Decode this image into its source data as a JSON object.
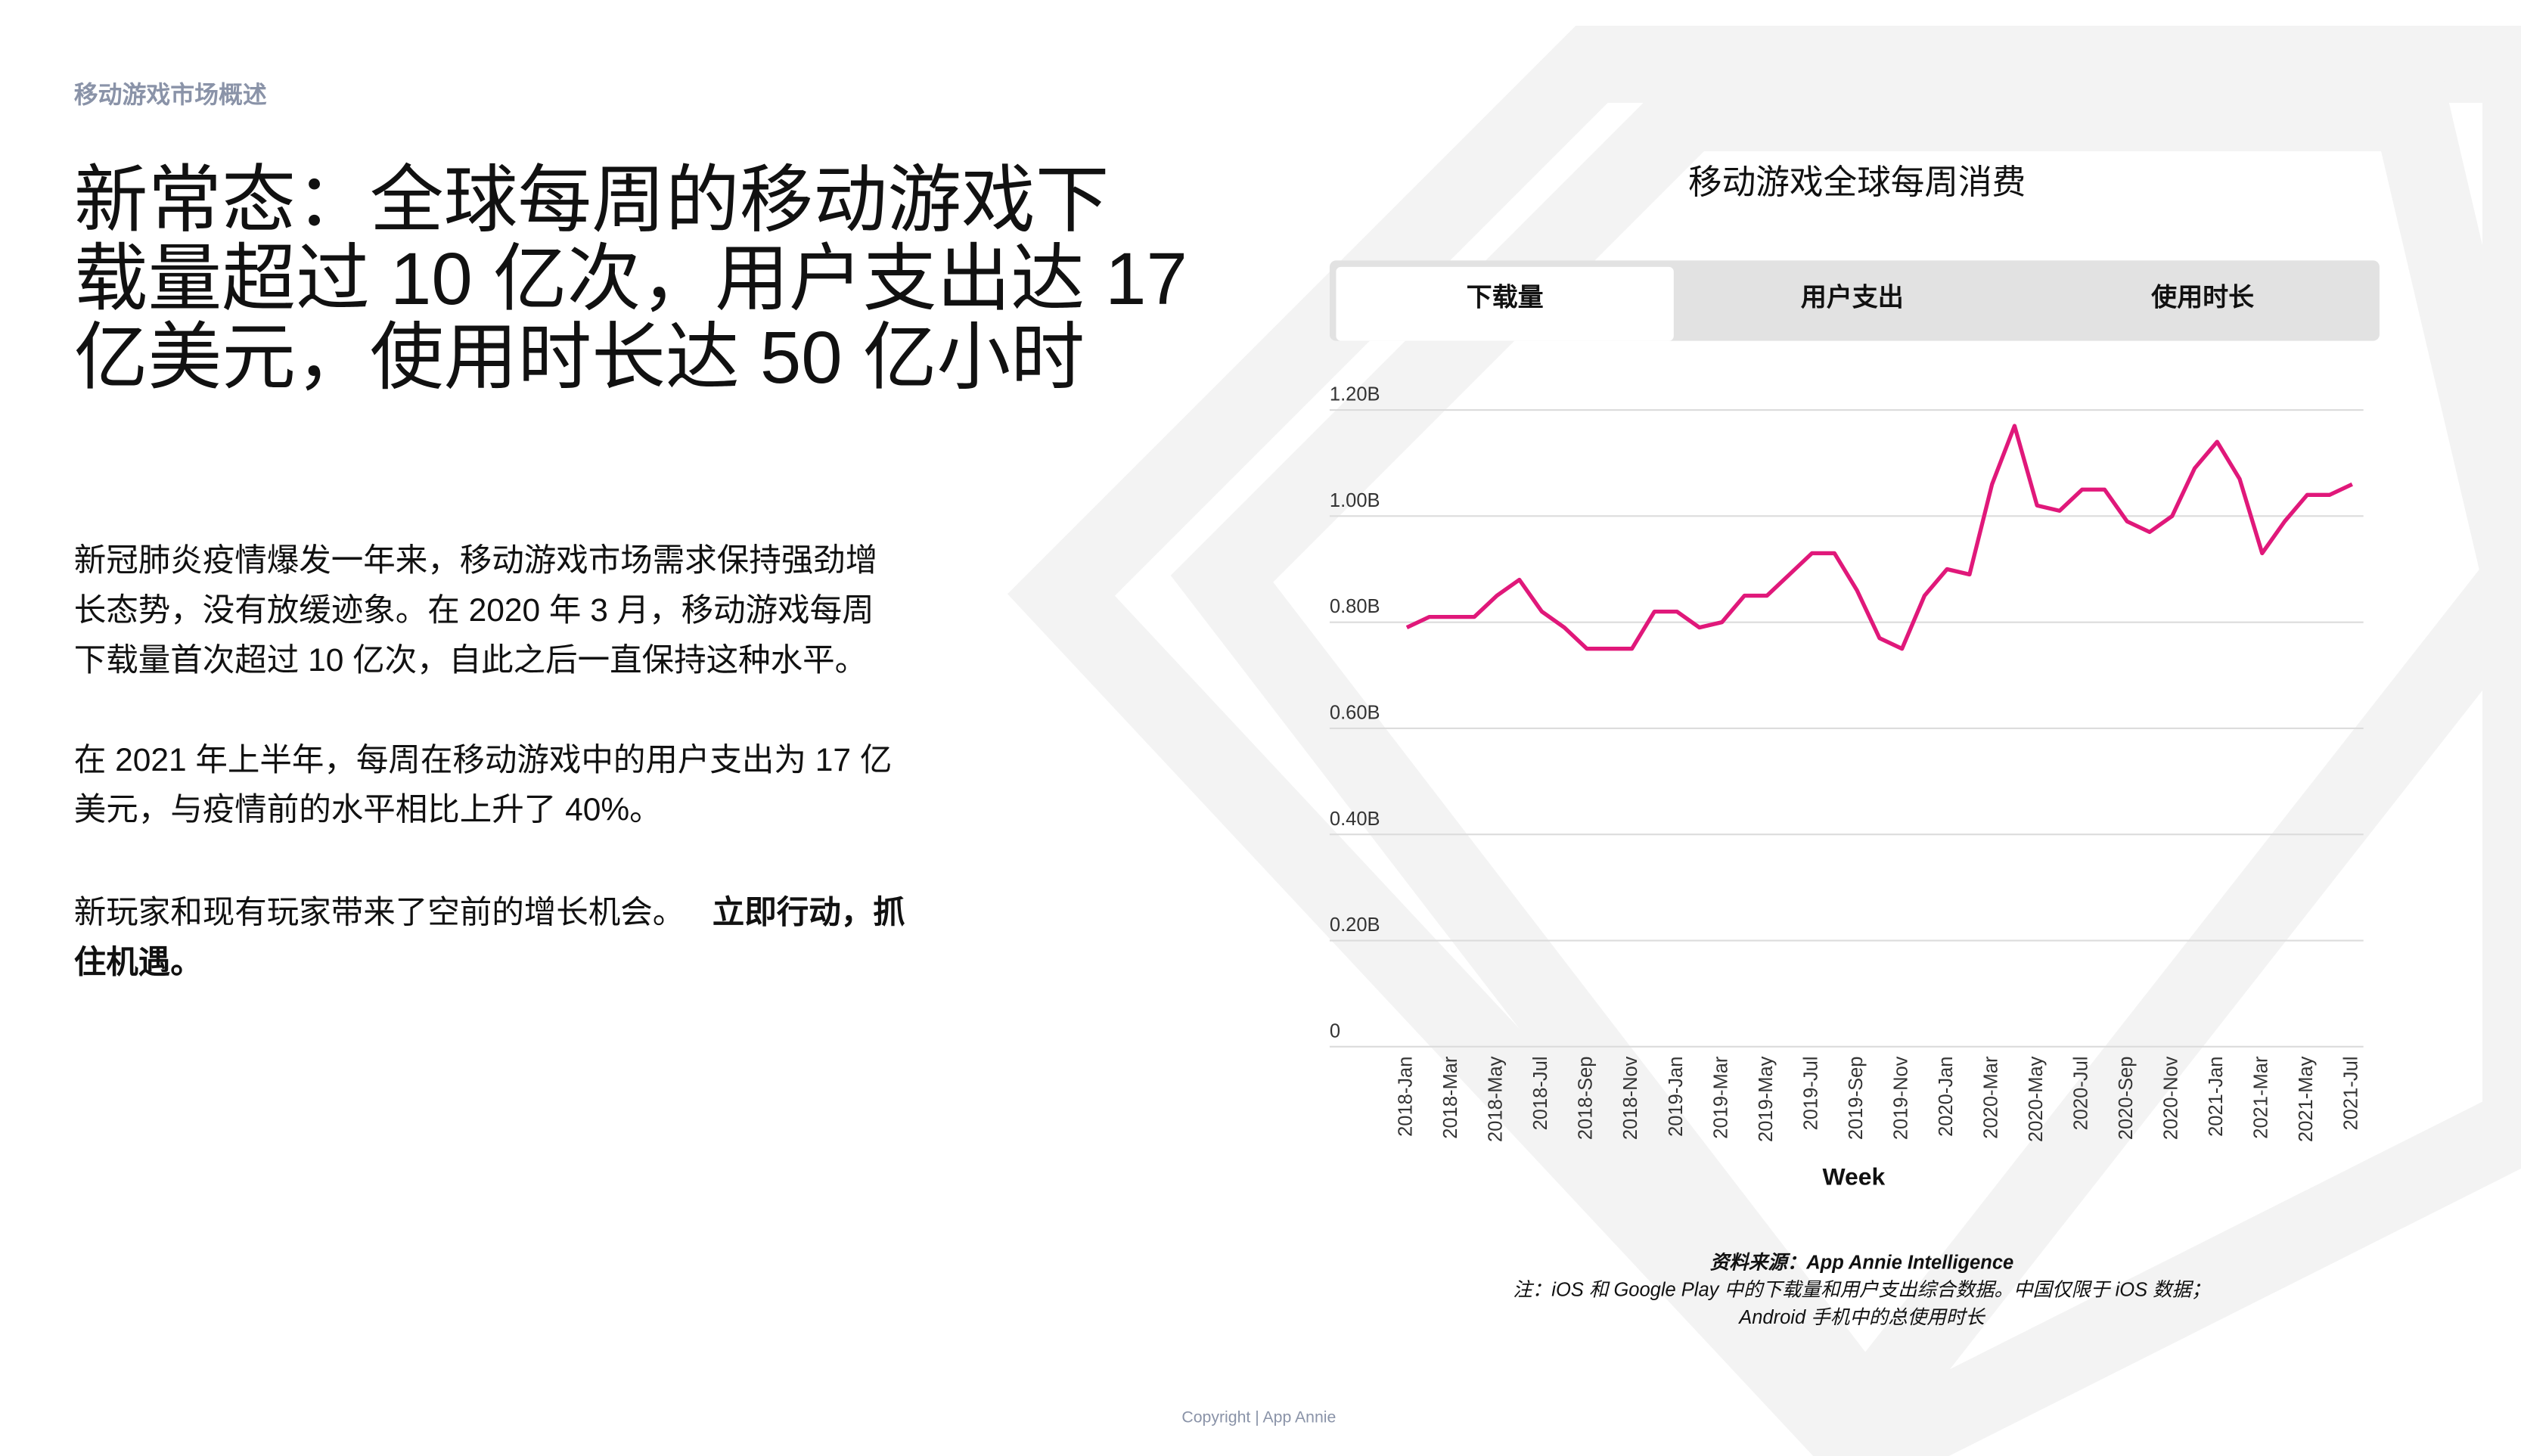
{
  "header": {
    "section": "移动游戏市场概述"
  },
  "headline": [
    "新常态：全球每周的移动游戏下",
    "载量超过 10 亿次，用户支出达 17",
    "亿美元，使用时长达 50 亿小时"
  ],
  "body": {
    "paragraphs": [
      [
        "新冠肺炎疫情爆发一年来，移动游戏市场需求保持强劲增",
        "长态势，没有放缓迹象。在 2020 年 3 月，移动游戏每周",
        "下载量首次超过 10 亿次，自此之后一直保持这种水平。"
      ],
      [
        "在 2021 年上半年，每周在移动游戏中的用户支出为 17 亿",
        "美元，与疫情前的水平相比上升了 40%。"
      ]
    ],
    "closing": {
      "plain": "新玩家和现有玩家带来了空前的增长机会。",
      "bold": [
        "立即行动，抓",
        "住机遇。"
      ]
    }
  },
  "tabs": [
    "下载量",
    "用户支出",
    "使用时长"
  ],
  "chart_data": {
    "type": "line",
    "title": "移动游戏全球每周消费",
    "x_label": "Week",
    "categories": [
      "2018-Jan",
      null,
      "2018-Mar",
      null,
      "2018-May",
      null,
      "2018-Jul",
      null,
      "2018-Sep",
      null,
      "2018-Nov",
      null,
      "2019-Jan",
      null,
      "2019-Mar",
      null,
      "2019-May",
      null,
      "2019-Jul",
      null,
      "2019-Sep",
      null,
      "2019-Nov",
      null,
      "2020-Jan",
      null,
      "2020-Mar",
      null,
      "2020-May",
      null,
      "2020-Jul",
      null,
      "2020-Sep",
      null,
      "2020-Nov",
      null,
      "2021-Jan",
      null,
      "2021-Mar",
      null,
      "2021-May",
      null,
      "2021-Jul"
    ],
    "values": [
      0.79,
      0.81,
      0.81,
      0.81,
      0.85,
      0.88,
      0.82,
      0.79,
      0.75,
      0.75,
      0.75,
      0.82,
      0.82,
      0.79,
      0.8,
      0.85,
      0.85,
      0.89,
      0.93,
      0.93,
      0.86,
      0.77,
      0.75,
      0.85,
      0.9,
      0.89,
      1.06,
      1.17,
      1.02,
      1.01,
      1.05,
      1.05,
      0.99,
      0.97,
      1.0,
      1.09,
      1.14,
      1.07,
      0.93,
      0.99,
      1.04,
      1.04,
      1.06
    ],
    "color": "#e0187a",
    "ylim": [
      0,
      1.2
    ],
    "yticks": [
      0,
      {
        "value": 0.2,
        "label": "0.20B"
      },
      {
        "value": 0.4,
        "label": "0.40B"
      },
      {
        "value": 0.6,
        "label": "0.60B"
      },
      {
        "value": 0.8,
        "label": "0.80B"
      },
      {
        "value": 1.0,
        "label": "1.00B"
      },
      {
        "value": 1.2,
        "label": "1.20B"
      }
    ],
    "grid": true
  },
  "source": {
    "line1": "资料来源：App Annie Intelligence",
    "line2": "注：iOS 和 Google Play 中的下载量和用户支出综合数据。中国仅限于 iOS 数据；",
    "line3": "Android 手机中的总使用时长"
  },
  "footer": "Copyright | App Annie"
}
